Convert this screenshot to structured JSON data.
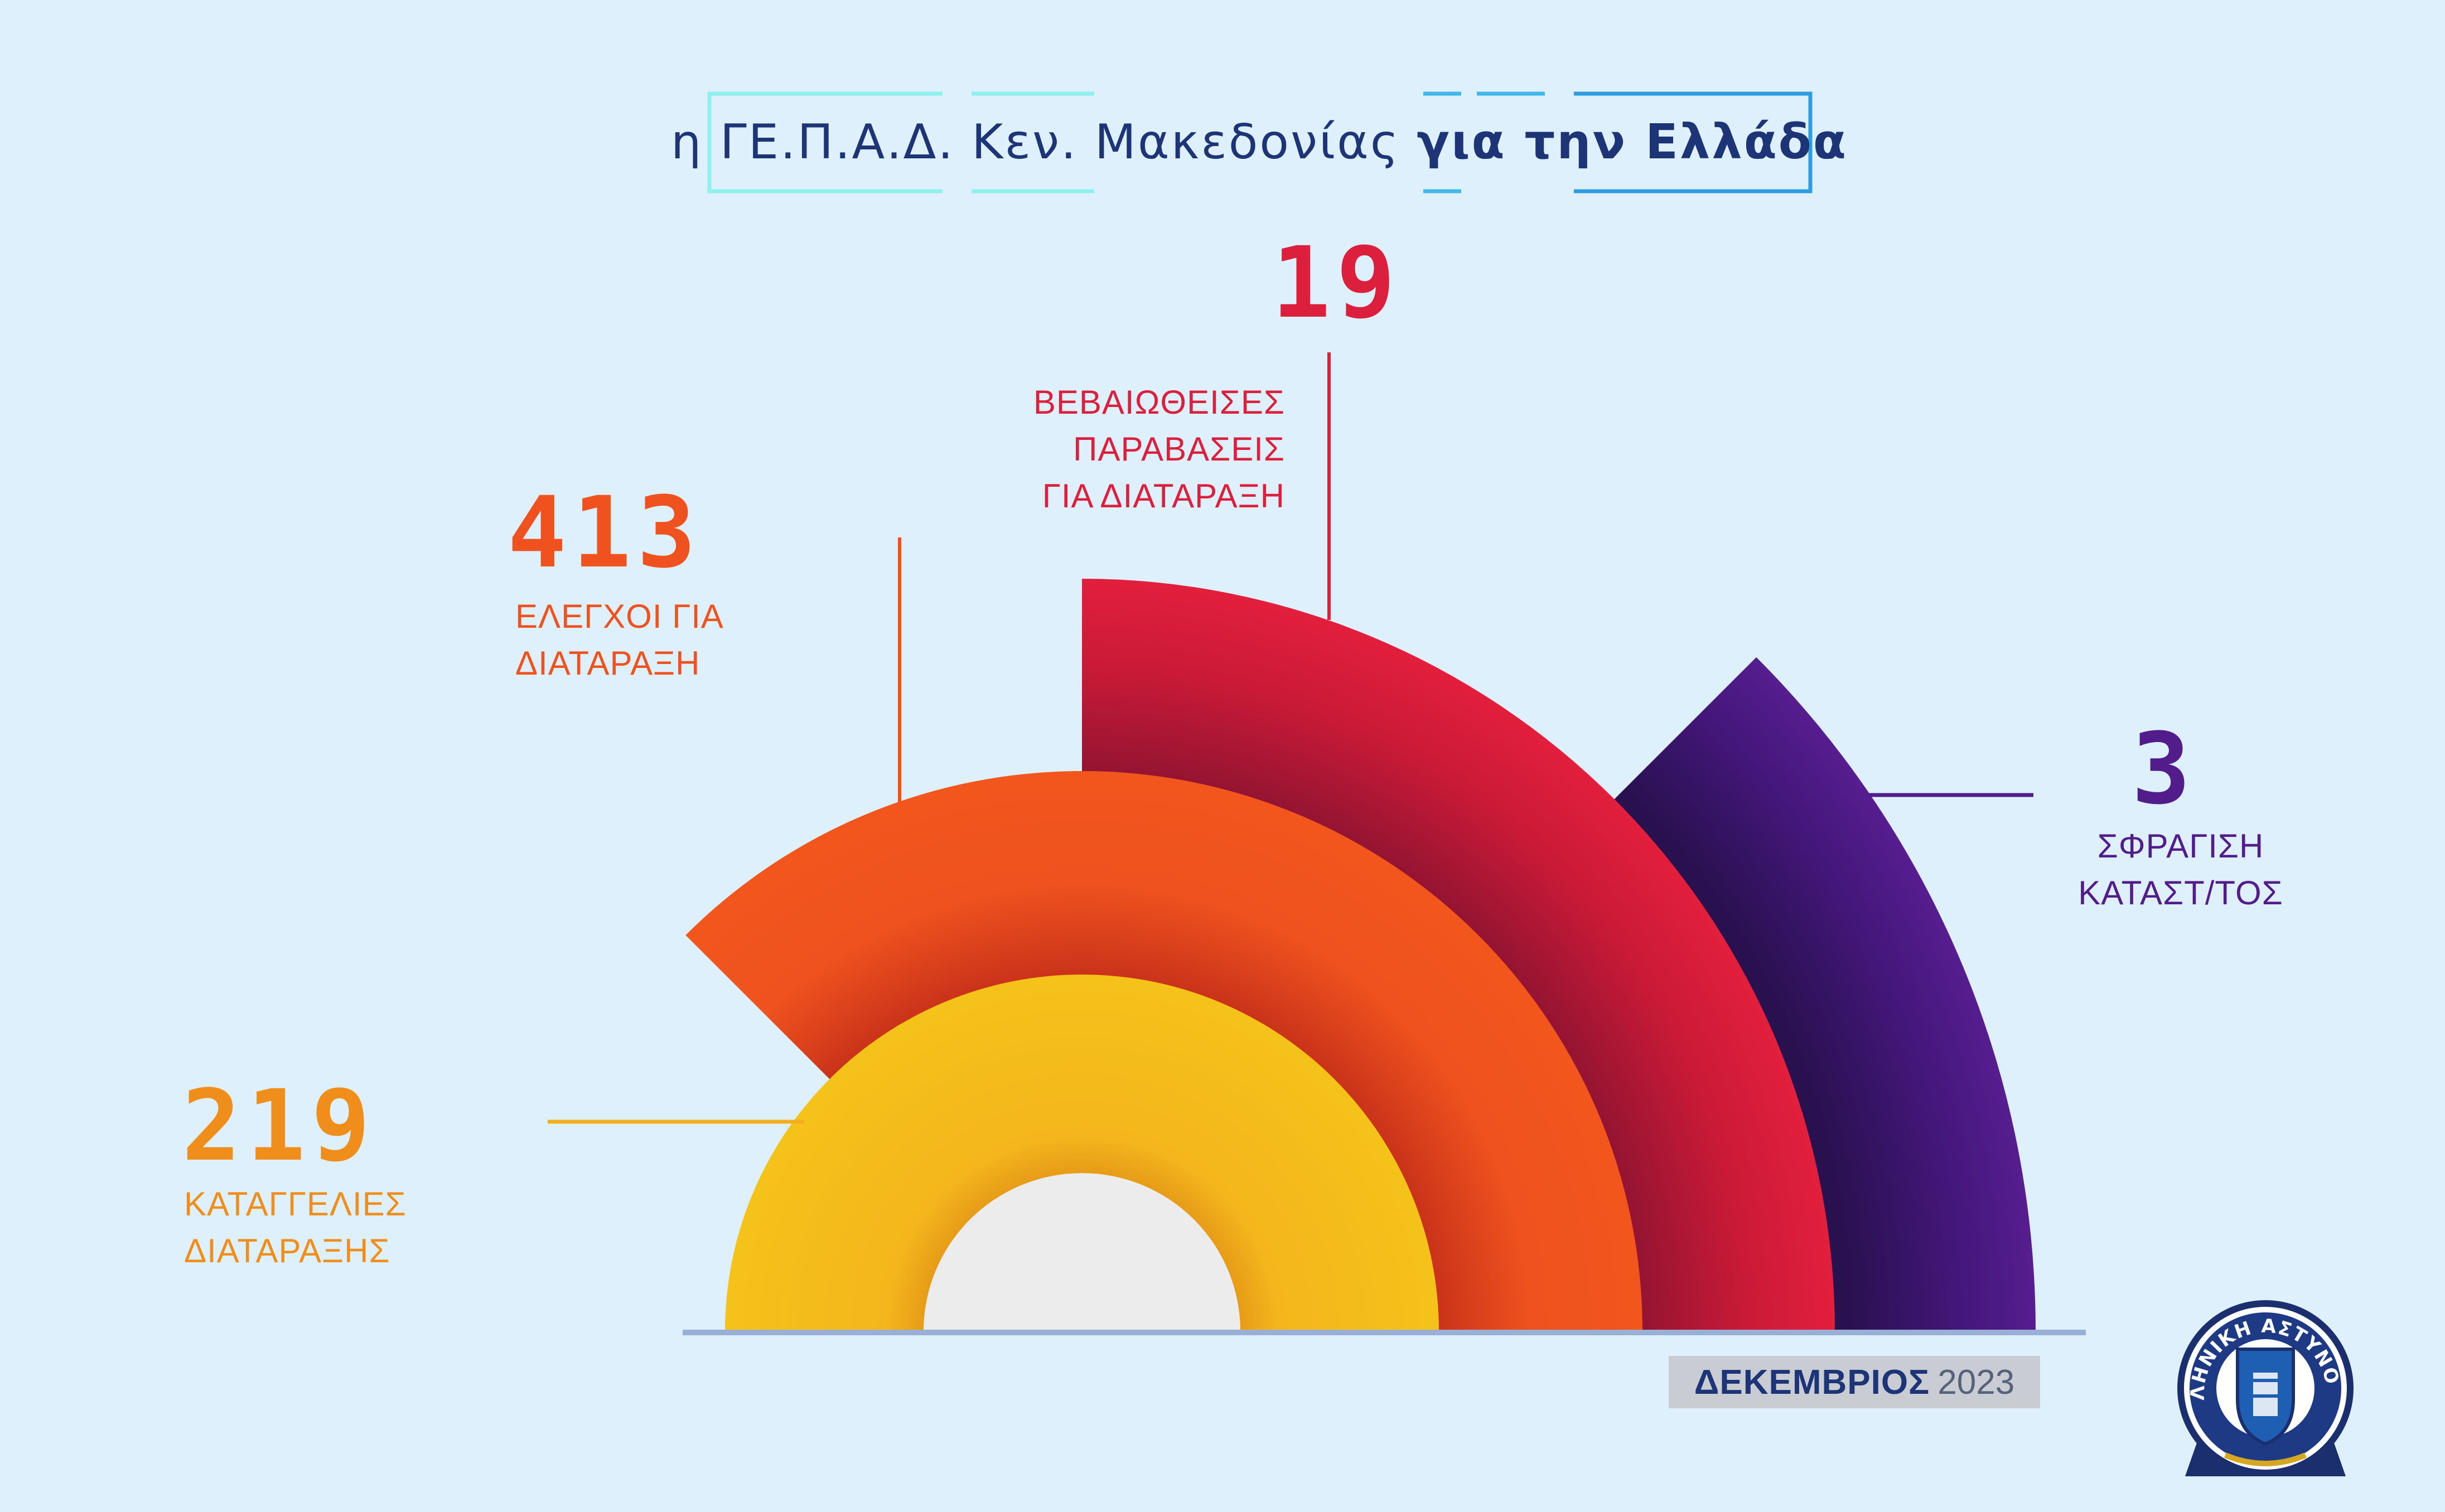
{
  "title": {
    "prefix": "η ΓΕ.Π.Α.Δ. Κεν. Μακεδονίας",
    "emphasis": "για την Ελλάδα"
  },
  "chart_data": {
    "type": "radial-bar",
    "series": [
      {
        "value": 219,
        "label_lines": [
          "ΚΑΤΑΓΓΕΛΙΕΣ",
          "ΔΙΑΤΑΡΑΞΗΣ"
        ],
        "color": "#f3ae1e"
      },
      {
        "value": 413,
        "label_lines": [
          "ΕΛΕΓΧΟΙ ΓΙΑ",
          "ΔΙΑΤΑΡΑΞΗ"
        ],
        "color": "#ef521e"
      },
      {
        "value": 19,
        "label_lines": [
          "ΒΕΒΑΙΩΘΕΙΣΕΣ",
          "ΠΑΡΑΒΑΣΕΙΣ",
          "ΓΙΑ ΔΙΑΤΑΡΑΞΗ"
        ],
        "color": "#dc1f3d"
      },
      {
        "value": 3,
        "label_lines": [
          "ΣΦΡΑΓΙΣΗ",
          "ΚΑΤΑΣΤ/ΤΟΣ"
        ],
        "color": "#521c8a"
      }
    ]
  },
  "date": {
    "month": "ΔΕΚΕΜΒΡΙΟΣ",
    "year": "2023"
  },
  "logo": {
    "text": "ΕΛΛΗΝΙΚΗ ΑΣΤΥΝΟΜΙΑ"
  },
  "colors": {
    "background": "#def0fb",
    "title_text": "#1d3576"
  }
}
